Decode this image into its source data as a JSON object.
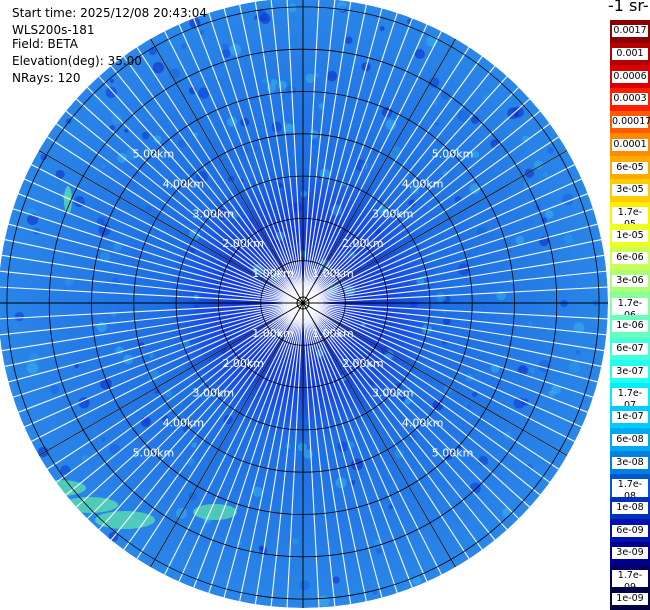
{
  "info": {
    "start_time": "Start time: 2025/12/08 20:43:04",
    "instrument": "WLS200s-181",
    "field": "Field: BETA",
    "elevation": "Elevation(deg): 35.00",
    "nrays": "NRays: 120"
  },
  "colorbar": {
    "title": "-1 sr-",
    "labels": [
      "0.0017",
      "0.001",
      "0.0006",
      "0.0003",
      "0.00017",
      "0.0001",
      "6e-05",
      "3e-05",
      "1.7e-05",
      "1e-05",
      "6e-06",
      "3e-06",
      "1.7e-06",
      "1e-06",
      "6e-07",
      "3e-07",
      "1.7e-07",
      "1e-07",
      "6e-08",
      "3e-08",
      "1.7e-08",
      "1e-08",
      "6e-09",
      "3e-09",
      "1.7e-09",
      "1e-09"
    ],
    "colors": [
      "#8b0000",
      "#b40000",
      "#d80000",
      "#ff1e00",
      "#ff5a00",
      "#ff8a00",
      "#ffaa00",
      "#ffcc00",
      "#ffee00",
      "#eeff22",
      "#ccff55",
      "#aaff77",
      "#88ff99",
      "#66ffbb",
      "#44ffdd",
      "#22ffee",
      "#00eeff",
      "#00ccff",
      "#00a8f0",
      "#0080e0",
      "#0058d0",
      "#0030c0",
      "#0010b0",
      "#00008c",
      "#000066",
      "#000044"
    ]
  },
  "ppi": {
    "range_labels": [
      "1.00km",
      "2.00km",
      "3.00km",
      "4.00km",
      "5.00km"
    ],
    "field_color": "#1e78e6",
    "center_color": "#0020c8",
    "plume_color": "#60e8a8"
  }
}
